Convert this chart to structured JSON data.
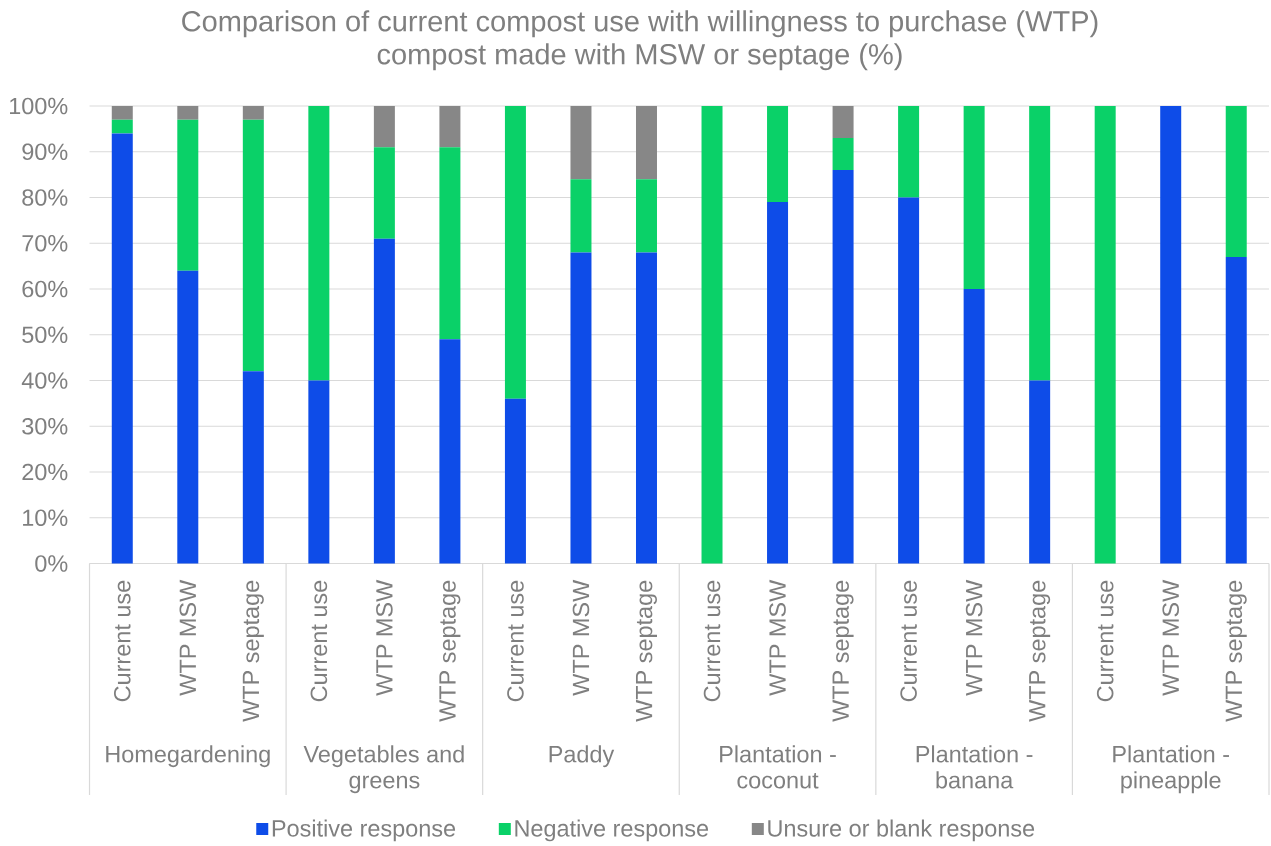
{
  "chart_data": {
    "type": "bar",
    "title": "Comparison of current compost use with willingness to purchase (WTP) compost made with MSW or septage (%)",
    "categories": [
      "Current use",
      "WTP MSW",
      "WTP septage",
      "Current use",
      "WTP MSW",
      "WTP septage",
      "Current use",
      "WTP MSW",
      "WTP septage",
      "Current use",
      "WTP MSW",
      "WTP septage",
      "Current use",
      "WTP MSW",
      "WTP septage",
      "Current use",
      "WTP MSW",
      "WTP septage"
    ],
    "annotations": [
      "Homegardening",
      "Vegetables and greens",
      "Paddy",
      "Plantation - coconut",
      "Plantation - banana",
      "Plantation - pineapple"
    ],
    "series": [
      {
        "name": "Positive response",
        "color": "#0e4ce8",
        "values": [
          94,
          64,
          42,
          40,
          71,
          49,
          36,
          68,
          68,
          0,
          79,
          86,
          80,
          60,
          40,
          0,
          100,
          67
        ]
      },
      {
        "name": "Negative response",
        "color": "#0ad168",
        "values": [
          3,
          33,
          55,
          60,
          20,
          42,
          64,
          16,
          16,
          100,
          21,
          7,
          20,
          40,
          60,
          100,
          0,
          33
        ]
      },
      {
        "name": "Unsure or blank response",
        "color": "#878787",
        "values": [
          3,
          3,
          3,
          0,
          9,
          9,
          0,
          16,
          16,
          0,
          0,
          7,
          0,
          0,
          0,
          0,
          0,
          0
        ]
      }
    ],
    "stacked": true,
    "ylim": [
      0,
      100
    ],
    "yticks": [
      {
        "value": 0,
        "label": "0%"
      },
      {
        "value": 10,
        "label": "10%"
      },
      {
        "value": 20,
        "label": "20%"
      },
      {
        "value": 30,
        "label": "30%"
      },
      {
        "value": 40,
        "label": "40%"
      },
      {
        "value": 50,
        "label": "50%"
      },
      {
        "value": 60,
        "label": "60%"
      },
      {
        "value": 70,
        "label": "70%"
      },
      {
        "value": 80,
        "label": "80%"
      },
      {
        "value": 90,
        "label": "90%"
      },
      {
        "value": 100,
        "label": "100%"
      }
    ],
    "grid": "y",
    "legend": "bottom"
  }
}
